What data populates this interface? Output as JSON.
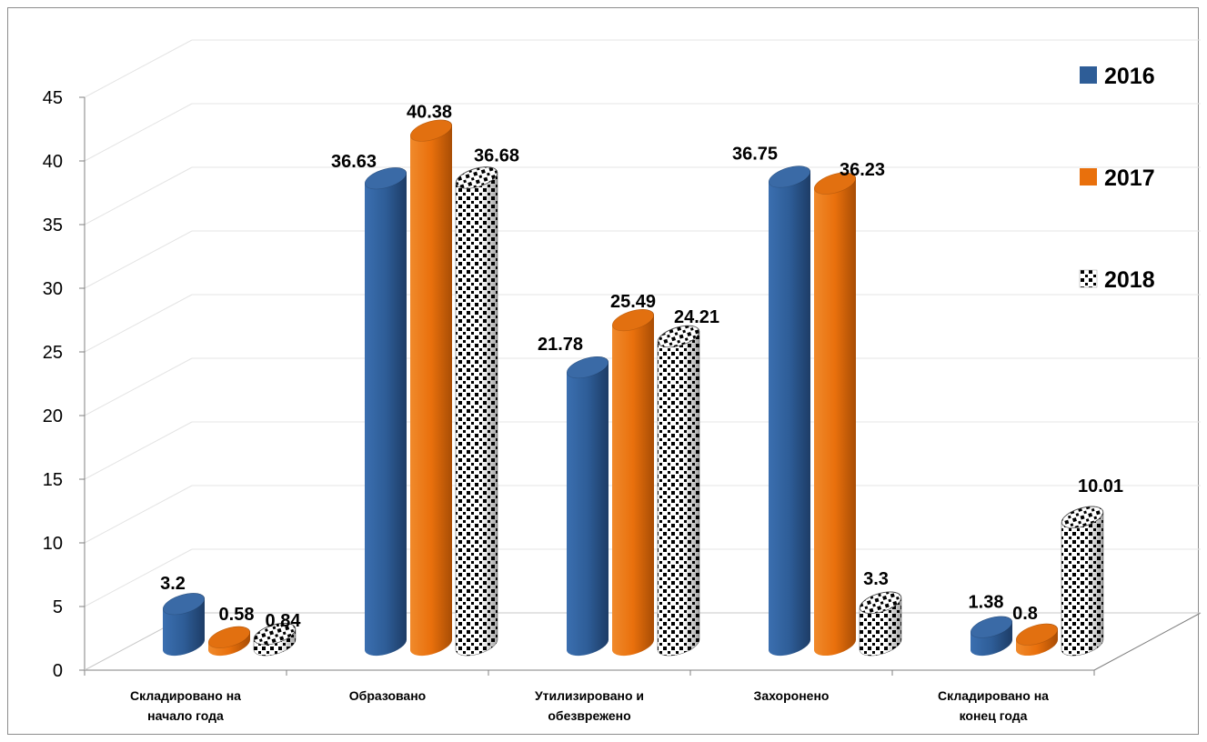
{
  "chart_data": {
    "type": "bar",
    "categories": [
      [
        "Складировано на",
        "начало года"
      ],
      [
        "Образовано"
      ],
      [
        "Утилизировано и",
        "обезврежено"
      ],
      [
        "Захоронено"
      ],
      [
        "Складировано на",
        "конец года"
      ]
    ],
    "series": [
      {
        "name": "2016",
        "color": "#2E5D97",
        "pattern": "solid",
        "values": [
          3.2,
          36.63,
          21.78,
          36.75,
          1.38
        ]
      },
      {
        "name": "2017",
        "color": "#E9700C",
        "pattern": "solid",
        "values": [
          0.58,
          40.38,
          25.49,
          36.23,
          0.8
        ]
      },
      {
        "name": "2018",
        "color": "#000000",
        "pattern": "checker",
        "values": [
          0.84,
          36.68,
          24.21,
          3.3,
          10.01
        ]
      }
    ],
    "data_labels": [
      [
        "3.2",
        "36.63",
        "21.78",
        "36.75",
        "1.38"
      ],
      [
        "0.58",
        "40.38",
        "25.49",
        "36.23",
        "0.8"
      ],
      [
        "0.84",
        "36.68",
        "24.21",
        "3.3",
        "10.01"
      ]
    ],
    "y_ticks": [
      "0",
      "5",
      "10",
      "15",
      "20",
      "25",
      "30",
      "35",
      "40",
      "45"
    ],
    "ylim": [
      0,
      45
    ],
    "grid": true,
    "legend": "right",
    "shape": "cylinder-3d"
  }
}
